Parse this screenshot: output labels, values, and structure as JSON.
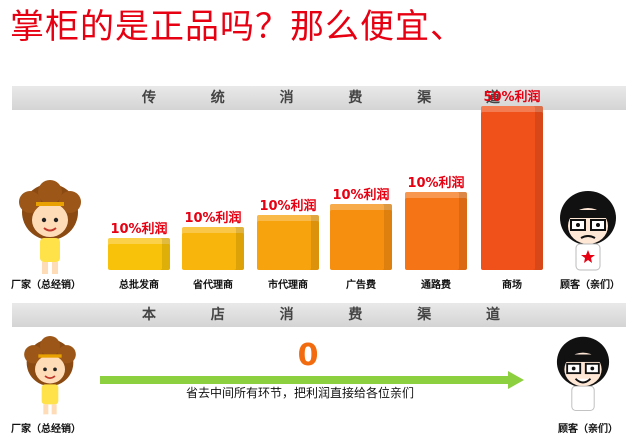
{
  "headline": "掌柜的是正品吗？那么便宜、",
  "traditional_channel": {
    "band_chars": [
      "传",
      "统",
      "消",
      "费",
      "渠",
      "道"
    ],
    "left_party": "厂家（总经销）",
    "right_party": "顾客（亲们）",
    "stages": [
      {
        "label": "总批发商",
        "margin": "10%利润",
        "level": 1,
        "color": "#f8c20b"
      },
      {
        "label": "省代理商",
        "margin": "10%利润",
        "level": 2,
        "color": "#f8b50b"
      },
      {
        "label": "市代理商",
        "margin": "10%利润",
        "level": 3,
        "color": "#f7a30d"
      },
      {
        "label": "广告费",
        "margin": "10%利润",
        "level": 4,
        "color": "#f68f0f"
      },
      {
        "label": "通路费",
        "margin": "10%利润",
        "level": 5,
        "color": "#f47416"
      },
      {
        "label": "商场",
        "margin": "50%利润",
        "level": 10,
        "color": "#f0501a"
      }
    ]
  },
  "direct_channel": {
    "band_chars": [
      "本",
      "店",
      "消",
      "费",
      "渠",
      "道"
    ],
    "left_party": "厂家（总经销）",
    "right_party": "顾客（亲们）",
    "zero": "0",
    "note": "省去中间所有环节，把利润直接给各位亲们",
    "arrow_color": "#8ccf3f"
  },
  "colors": {
    "headline": "#e60012",
    "margin_text": "#e60012",
    "zero": "#f26b0f"
  }
}
